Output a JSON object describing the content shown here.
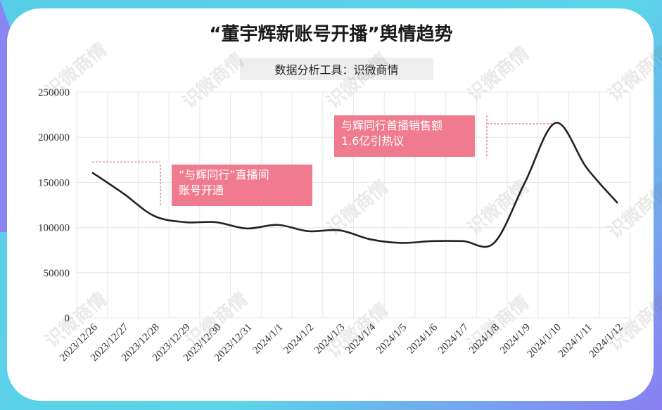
{
  "title": "“董宇辉新账号开播”舆情趋势",
  "subtitle": "数据分析工具：识微商情",
  "watermark": "识微商情",
  "colors": {
    "line": "#222222",
    "annotation": "#f07b8e",
    "leader": "#e0505f",
    "grid": "#e8e8e8"
  },
  "annotations": [
    {
      "text": "“与辉同行”直播间\n账号开通",
      "at": "2023/12/26"
    },
    {
      "text": "与辉同行首播销售额\n1.6亿引热议",
      "at": "2024/1/10"
    }
  ],
  "chart_data": {
    "type": "line",
    "title": "“董宇辉新账号开播”舆情趋势",
    "xlabel": "",
    "ylabel": "",
    "ylim": [
      0,
      250000
    ],
    "yticks": [
      0,
      50000,
      100000,
      150000,
      200000,
      250000
    ],
    "grid": true,
    "categories": [
      "2023/12/26",
      "2023/12/27",
      "2023/12/28",
      "2023/12/29",
      "2023/12/30",
      "2023/12/31",
      "2024/1/1",
      "2024/1/2",
      "2024/1/3",
      "2024/1/4",
      "2024/1/5",
      "2024/1/6",
      "2024/1/7",
      "2024/1/8",
      "2024/1/9",
      "2024/1/10",
      "2024/1/11",
      "2024/1/12"
    ],
    "series": [
      {
        "values": [
          161000,
          138000,
          113000,
          106000,
          106000,
          99000,
          103000,
          96000,
          97000,
          87000,
          83000,
          85000,
          85000,
          83000,
          150000,
          216000,
          166000,
          127000
        ]
      }
    ]
  }
}
